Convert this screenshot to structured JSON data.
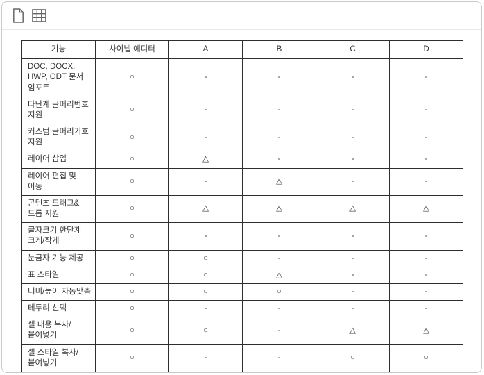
{
  "toolbar": {
    "buttons": [
      {
        "name": "new-document-button",
        "icon": "document-icon"
      },
      {
        "name": "insert-table-button",
        "icon": "table-grid-icon"
      }
    ]
  },
  "comparison_table": {
    "columns": [
      "기능",
      "사이냅 에디터",
      "A",
      "B",
      "C",
      "D"
    ],
    "symbol_legend": {
      "supported": "○",
      "partial": "△",
      "unsupported": "-"
    },
    "rows": [
      {
        "feature": "DOC, DOCX, HWP, ODT 문서 임포트",
        "values": [
          "○",
          "-",
          "-",
          "-",
          "-"
        ]
      },
      {
        "feature": "다단계 글머리번호 지원",
        "values": [
          "○",
          "-",
          "-",
          "-",
          "-"
        ]
      },
      {
        "feature": "커스텀 글머리기호 지원",
        "values": [
          "○",
          "-",
          "-",
          "-",
          "-"
        ]
      },
      {
        "feature": "레이어 삽입",
        "values": [
          "○",
          "△",
          "-",
          "-",
          "-"
        ]
      },
      {
        "feature": "레이어 편집 및 이동",
        "values": [
          "○",
          "-",
          "△",
          "-",
          "-"
        ]
      },
      {
        "feature": "콘텐츠 드래그&드롭 지원",
        "values": [
          "○",
          "△",
          "△",
          "△",
          "△"
        ]
      },
      {
        "feature": "글자크기 한단계 크게/작게",
        "values": [
          "○",
          "-",
          "-",
          "-",
          "-"
        ]
      },
      {
        "feature": "눈금자 기능 제공",
        "values": [
          "○",
          "○",
          "-",
          "-",
          "-"
        ]
      },
      {
        "feature": "표 스타일",
        "values": [
          "○",
          "○",
          "△",
          "-",
          "-"
        ]
      },
      {
        "feature": "너비/높이 자동맞춤",
        "values": [
          "○",
          "○",
          "○",
          "-",
          "-"
        ]
      },
      {
        "feature": "테두리 선택",
        "values": [
          "○",
          "-",
          "-",
          "-",
          "-"
        ]
      },
      {
        "feature": "셀 내용 복사/붙여넣기",
        "values": [
          "○",
          "○",
          "-",
          "△",
          "△"
        ]
      },
      {
        "feature": "셀 스타일 복사/붙여넣기",
        "values": [
          "○",
          "-",
          "-",
          "○",
          "○"
        ]
      }
    ]
  },
  "colors": {
    "frame_border": "#c9c9c9",
    "toolbar_divider": "#e8e8e8",
    "table_border": "#2e2e2e",
    "text": "#333333",
    "icon": "#666666"
  }
}
